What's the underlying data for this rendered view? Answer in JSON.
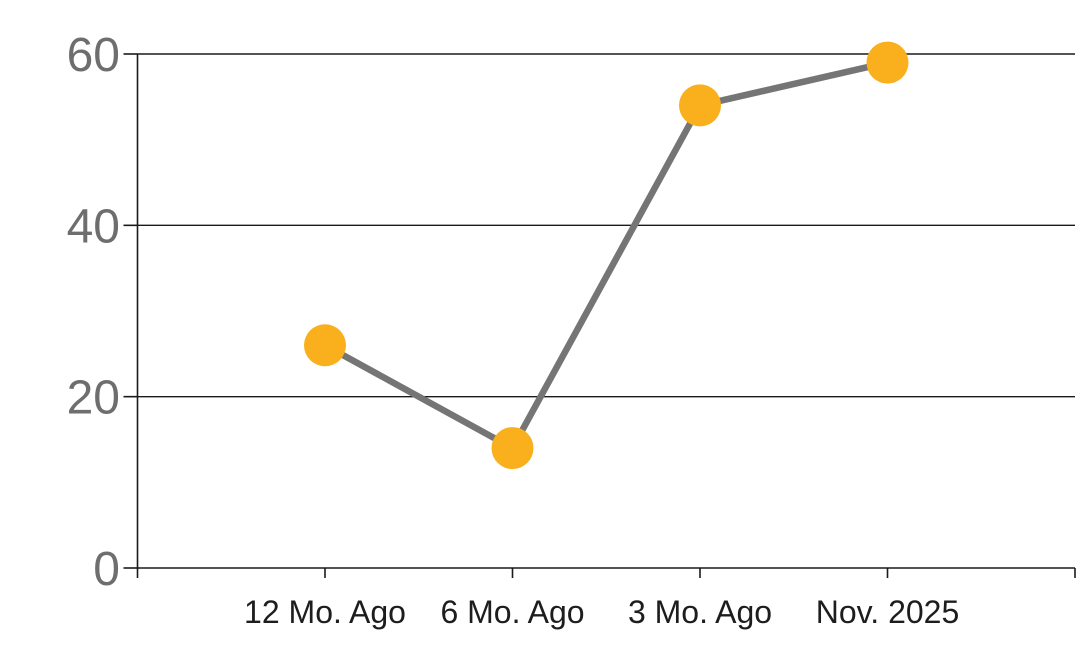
{
  "chart_data": {
    "type": "line",
    "categories": [
      "12 Mo. Ago",
      "6 Mo. Ago",
      "3 Mo. Ago",
      "Nov. 2025"
    ],
    "values": [
      26,
      14,
      54,
      59
    ],
    "title": "",
    "xlabel": "",
    "ylabel": "",
    "ylim": [
      0,
      60
    ],
    "yticks": [
      0,
      20,
      40,
      60
    ],
    "grid": true,
    "legend": false,
    "colors": {
      "marker": "#FAAF1D",
      "line": "#757575",
      "axis": "#1a1a1a",
      "gridline": "#1a1a1a",
      "y_tick_label": "#6e6e6e",
      "x_tick_label": "#1d1d1d",
      "background": "#ffffff"
    }
  }
}
